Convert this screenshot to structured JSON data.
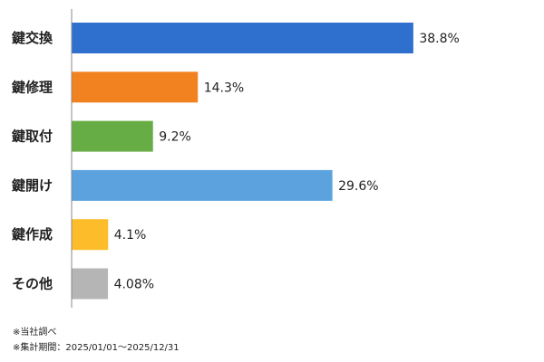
{
  "chart_data": {
    "type": "bar",
    "orientation": "horizontal",
    "categories": [
      "鍵交換",
      "鍵修理",
      "鍵取付",
      "鍵開け",
      "鍵作成",
      "その他"
    ],
    "values": [
      38.8,
      14.3,
      9.2,
      29.6,
      4.1,
      4.08
    ],
    "value_labels": [
      "38.8%",
      "14.3%",
      "9.2%",
      "29.6%",
      "4.1%",
      "4.08%"
    ],
    "colors": [
      "#2f6fce",
      "#f28120",
      "#67ad46",
      "#5ba2df",
      "#fdbd2b",
      "#b5b5b5"
    ],
    "xlim": [
      0,
      40
    ],
    "grid": false,
    "legend": "none"
  },
  "notes": {
    "source": "※当社調べ",
    "period": "※集計期間：2025/01/01～2025/12/31"
  }
}
